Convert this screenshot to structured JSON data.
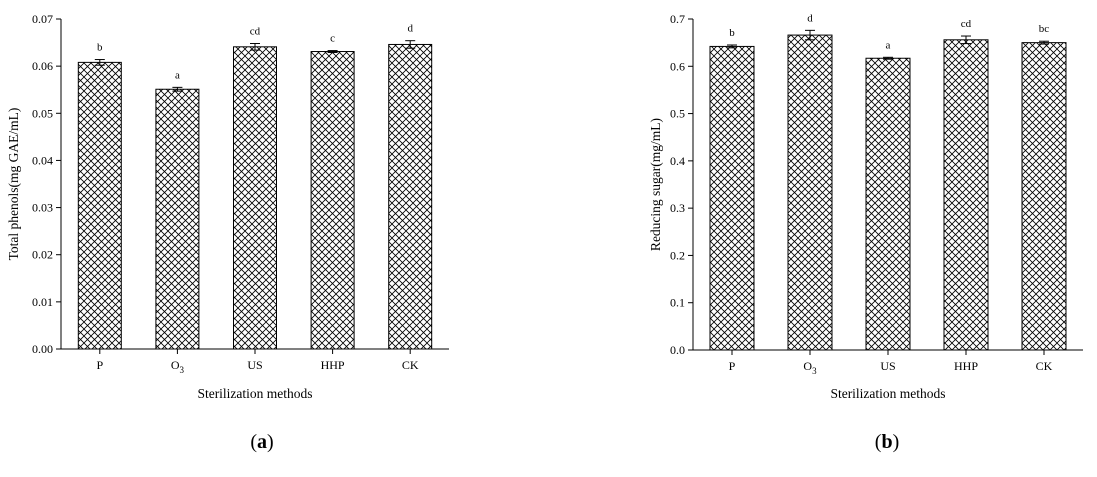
{
  "chart_data": [
    {
      "type": "bar",
      "panel_label": "(a)",
      "categories": [
        "P",
        "O3",
        "US",
        "HHP",
        "CK"
      ],
      "category_subscripts": [
        "",
        "3",
        "",
        "",
        ""
      ],
      "category_bases": [
        "P",
        "O",
        "US",
        "HHP",
        "CK"
      ],
      "values": [
        0.0608,
        0.0551,
        0.0641,
        0.0631,
        0.0646
      ],
      "errors": [
        0.0006,
        0.0004,
        0.0007,
        0.0002,
        0.0008
      ],
      "significance": [
        "b",
        "a",
        "cd",
        "c",
        "d"
      ],
      "xlabel": "Sterilization methods",
      "ylabel": "Total phenols(mg GAE/mL)",
      "ylim": [
        0,
        0.07
      ],
      "yticks": [
        "0.00",
        "0.01",
        "0.02",
        "0.03",
        "0.04",
        "0.05",
        "0.06",
        "0.07"
      ],
      "bar_pattern": "crosshatch",
      "grid": false
    },
    {
      "type": "bar",
      "panel_label": "(b)",
      "categories": [
        "P",
        "O3",
        "US",
        "HHP",
        "CK"
      ],
      "category_subscripts": [
        "",
        "3",
        "",
        "",
        ""
      ],
      "category_bases": [
        "P",
        "O",
        "US",
        "HHP",
        "CK"
      ],
      "values": [
        0.642,
        0.666,
        0.617,
        0.656,
        0.65
      ],
      "errors": [
        0.003,
        0.01,
        0.002,
        0.008,
        0.003
      ],
      "significance": [
        "b",
        "d",
        "a",
        "cd",
        "bc"
      ],
      "xlabel": "Sterilization methods",
      "ylabel": "Reducing sugar(mg/mL)",
      "ylim": [
        0,
        0.7
      ],
      "yticks": [
        "0.0",
        "0.1",
        "0.2",
        "0.3",
        "0.4",
        "0.5",
        "0.6",
        "0.7"
      ],
      "bar_pattern": "crosshatch",
      "grid": false
    }
  ]
}
